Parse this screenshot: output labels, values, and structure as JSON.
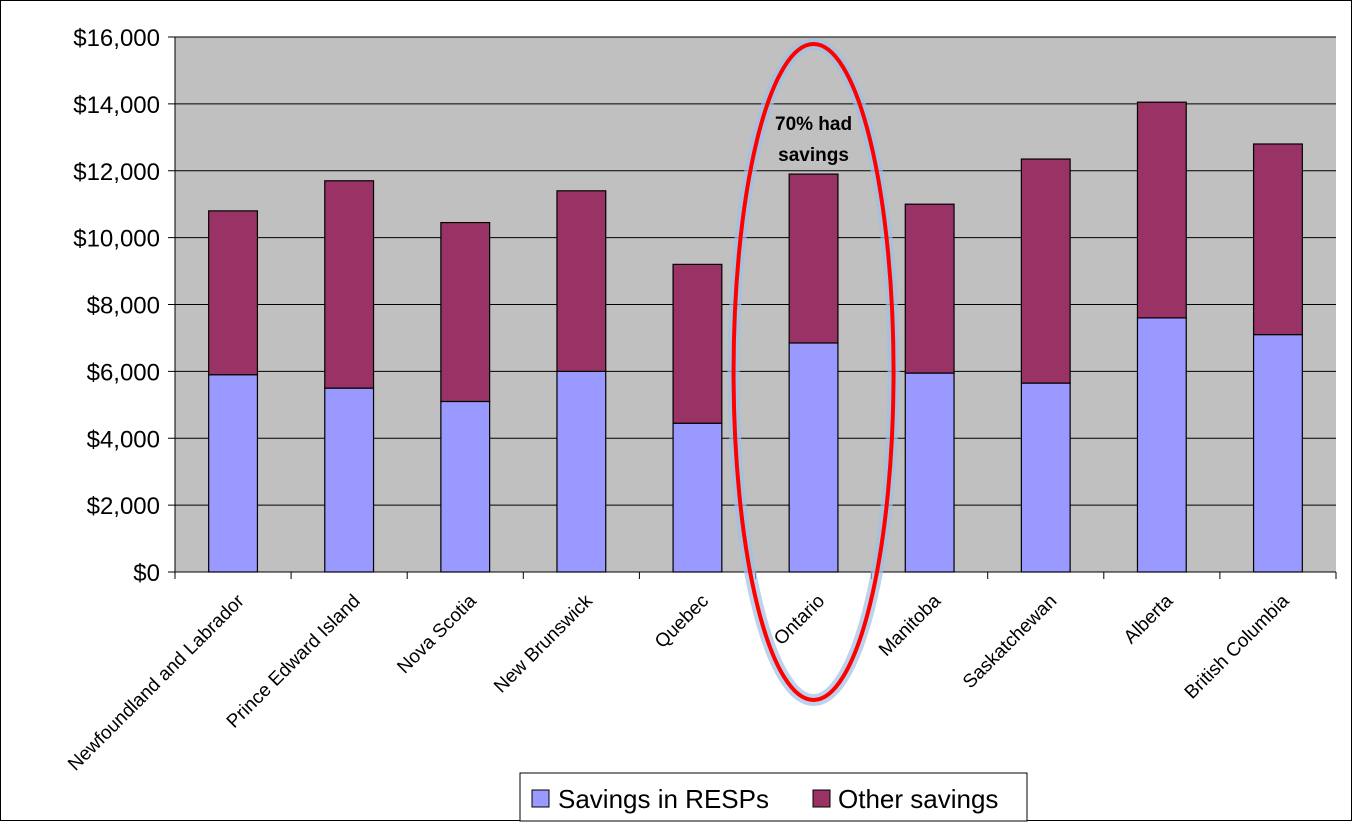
{
  "chart_data": {
    "type": "bar",
    "stacked": true,
    "title": "",
    "xlabel": "",
    "ylabel": "",
    "ylim": [
      0,
      16000
    ],
    "ytick_step": 2000,
    "ytick_labels": [
      "$0",
      "$2,000",
      "$4,000",
      "$6,000",
      "$8,000",
      "$10,000",
      "$12,000",
      "$14,000",
      "$16,000"
    ],
    "grid": true,
    "legend_position": "bottom",
    "categories": [
      "Newfoundland and Labrador",
      "Prince Edward Island",
      "Nova Scotia",
      "New Brunswick",
      "Quebec",
      "Ontario",
      "Manitoba",
      "Saskatchewan",
      "Alberta",
      "British Columbia"
    ],
    "series": [
      {
        "name": "Savings in RESPs",
        "color": "#9999ff",
        "values": [
          5900,
          5500,
          5100,
          6000,
          4450,
          6850,
          5950,
          5650,
          7600,
          7100
        ]
      },
      {
        "name": "Other savings",
        "color": "#993366",
        "values": [
          4900,
          6200,
          5350,
          5400,
          4750,
          5050,
          5050,
          6700,
          6450,
          5700
        ]
      }
    ],
    "annotations": [
      {
        "text_line1": "70% had",
        "text_line2": "savings",
        "category": "Ontario",
        "shape": "red-ellipse-highlight"
      }
    ],
    "plot_background": "#c0c0c0",
    "highlight_color": "#ff0000"
  }
}
